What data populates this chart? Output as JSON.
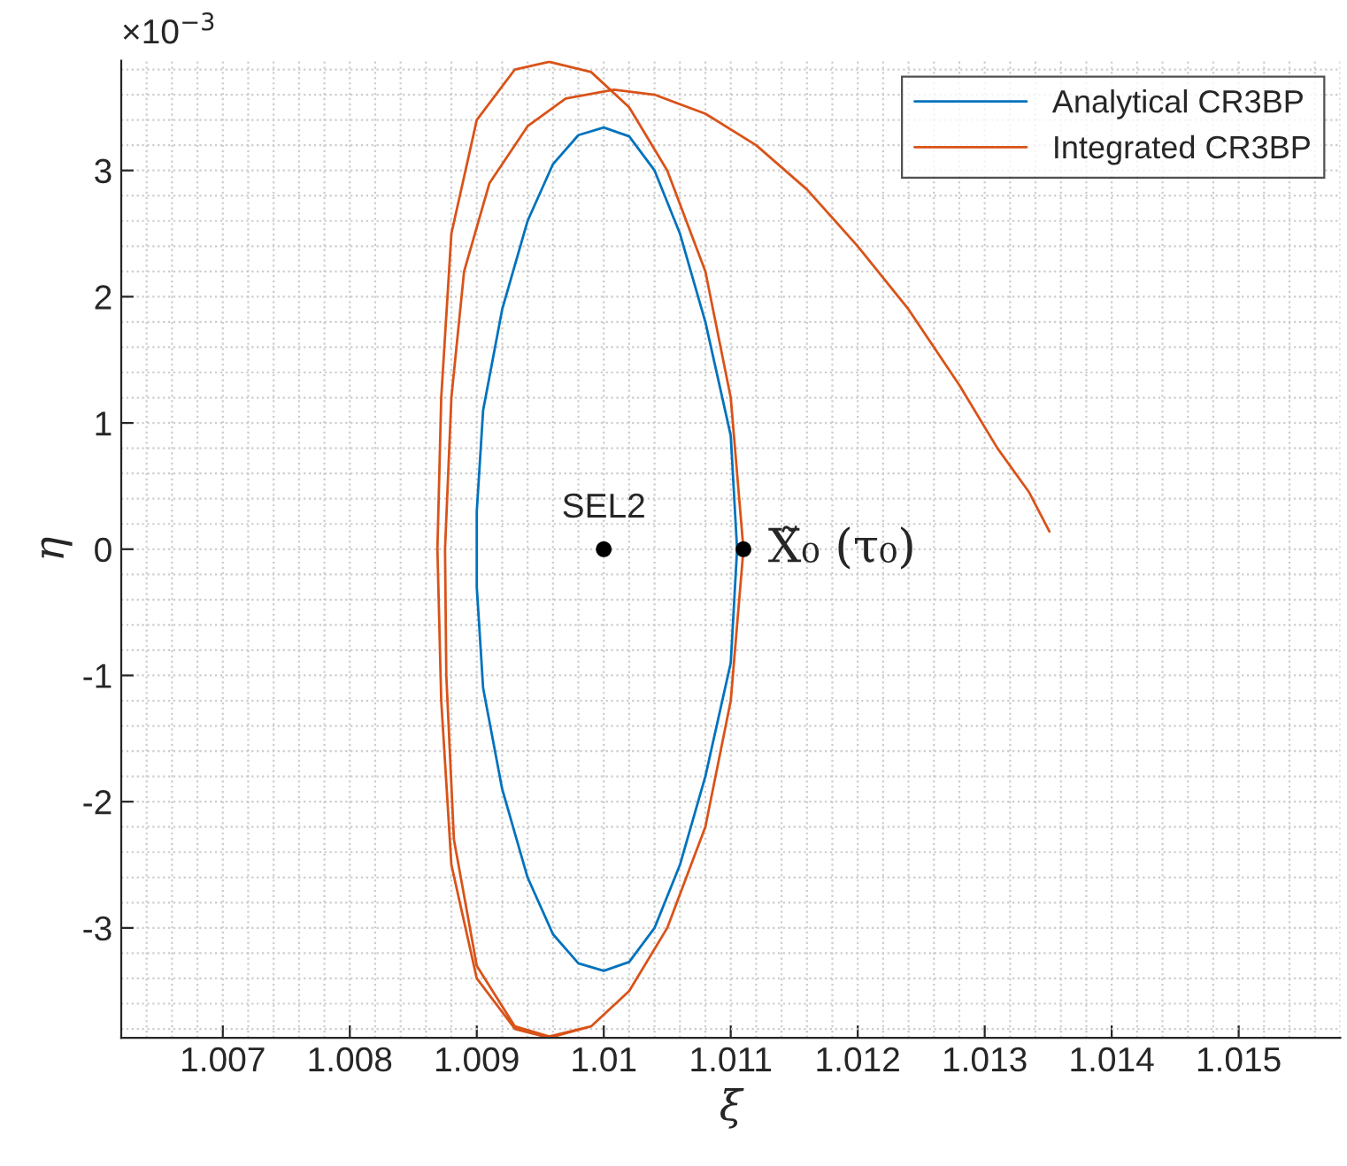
{
  "chart_data": {
    "type": "line",
    "xlabel": "ξ",
    "ylabel": "η",
    "xlim": [
      1.0062,
      1.0158
    ],
    "xticks": [
      1.007,
      1.008,
      1.009,
      1.01,
      1.011,
      1.012,
      1.013,
      1.014,
      1.015
    ],
    "ylim": [
      -3.87,
      3.87
    ],
    "yticks": [
      -3,
      -2,
      -1,
      0,
      1,
      2,
      3
    ],
    "grid": true,
    "legend": "top right",
    "annotations": [
      "×10$^{−3}$",
      {
        "text": "SEL2",
        "x": 1.01,
        "y": 0
      },
      {
        "text": "X̃₀ (τ₀)",
        "x": 1.0111,
        "y": 0
      }
    ],
    "series": [
      {
        "name": "Analytical CR3BP",
        "color": "#0072bd",
        "x": [
          1.01105,
          1.011,
          1.0108,
          1.0106,
          1.0104,
          1.0102,
          1.01,
          1.0098,
          1.0096,
          1.0094,
          1.0092,
          1.00905,
          1.009,
          1.009,
          1.00905,
          1.0092,
          1.0094,
          1.0096,
          1.0098,
          1.01,
          1.0102,
          1.0104,
          1.0106,
          1.0108,
          1.011,
          1.01105,
          1.011
        ],
        "values": [
          0,
          0.9,
          1.8,
          2.5,
          3.0,
          3.27,
          3.34,
          3.28,
          3.05,
          2.6,
          1.9,
          1.1,
          0.3,
          -0.3,
          -1.1,
          -1.9,
          -2.6,
          -3.05,
          -3.28,
          -3.34,
          -3.27,
          -3.0,
          -2.5,
          -1.8,
          -0.9,
          0,
          0.9
        ]
      },
      {
        "name": "Integrated CR3BP",
        "color": "#d95319",
        "x": [
          1.0111,
          1.011,
          1.0108,
          1.0105,
          1.0102,
          1.0099,
          1.00957,
          1.0093,
          1.009,
          1.0088,
          1.00872,
          1.00869,
          1.00872,
          1.0088,
          1.009,
          1.0093,
          1.00957,
          1.0099,
          1.0102,
          1.0105,
          1.0108,
          1.011,
          1.0111,
          1.011,
          1.0108,
          1.0105,
          1.0102,
          1.0099,
          1.00957,
          1.0093,
          1.009,
          1.00882,
          1.00876,
          1.00875,
          1.0088,
          1.0089,
          1.0091,
          1.0094,
          1.0097,
          1.01008,
          1.0104,
          1.0108,
          1.0112,
          1.0116,
          1.012,
          1.0124,
          1.0128,
          1.0131,
          1.01335,
          1.01351
        ],
        "values": [
          0,
          -1.2,
          -2.2,
          -3.0,
          -3.5,
          -3.78,
          -3.87,
          -3.8,
          -3.4,
          -2.5,
          -1.2,
          0,
          1.2,
          2.5,
          3.4,
          3.8,
          3.86,
          3.78,
          3.5,
          3.0,
          2.2,
          1.2,
          0,
          -1.2,
          -2.2,
          -3.0,
          -3.5,
          -3.78,
          -3.86,
          -3.78,
          -3.3,
          -2.3,
          -1.0,
          0,
          1.2,
          2.2,
          2.9,
          3.35,
          3.57,
          3.64,
          3.6,
          3.45,
          3.2,
          2.85,
          2.4,
          1.9,
          1.3,
          0.8,
          0.45,
          0.14
        ]
      },
      {
        "type": "scatter",
        "color": "#000000",
        "x": [
          1.01,
          1.0111
        ],
        "values": [
          0,
          0
        ]
      }
    ]
  }
}
